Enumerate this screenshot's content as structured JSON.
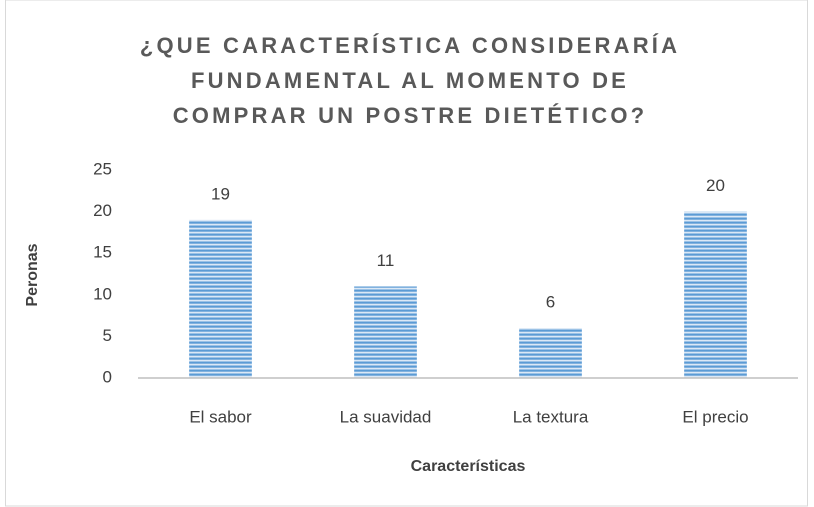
{
  "chart_data": {
    "type": "bar",
    "title": [
      "¿QUE CARACTERÍSTICA CONSIDERARÍA",
      "FUNDAMENTAL AL MOMENTO DE",
      "COMPRAR UN POSTRE DIETÉTICO?"
    ],
    "x_label": "Características",
    "y_label": "Peronas",
    "categories": [
      "El sabor",
      "La suavidad",
      "La textura",
      "El precio"
    ],
    "values": [
      19,
      11,
      6,
      20
    ],
    "color": "#5b9bd5",
    "ylim": [
      0,
      25
    ],
    "yticks": [
      0,
      5,
      10,
      15,
      20,
      25
    ],
    "grid": false
  }
}
